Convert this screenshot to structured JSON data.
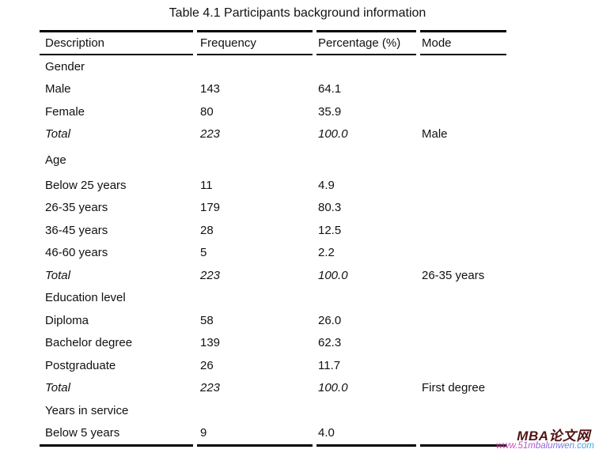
{
  "title": "Table 4.1 Participants background information",
  "table": {
    "columns": [
      "Description",
      "Frequency",
      "Percentage (%)",
      "Mode"
    ],
    "rows": [
      {
        "type": "section",
        "description": "Gender",
        "frequency": "",
        "percentage": "",
        "mode": ""
      },
      {
        "type": "data",
        "description": "Male",
        "frequency": "143",
        "percentage": "64.1",
        "mode": ""
      },
      {
        "type": "data",
        "description": "Female",
        "frequency": "80",
        "percentage": "35.9",
        "mode": ""
      },
      {
        "type": "total",
        "description": "Total",
        "frequency": "223",
        "percentage": "100.0",
        "mode": "Male"
      },
      {
        "type": "section",
        "description": "Age",
        "frequency": "",
        "percentage": "",
        "mode": ""
      },
      {
        "type": "data",
        "description": "Below 25 years",
        "frequency": "11",
        "percentage": "4.9",
        "mode": ""
      },
      {
        "type": "data",
        "description": "26-35 years",
        "frequency": "179",
        "percentage": "80.3",
        "mode": ""
      },
      {
        "type": "data",
        "description": "36-45 years",
        "frequency": "28",
        "percentage": "12.5",
        "mode": ""
      },
      {
        "type": "data",
        "description": "46-60 years",
        "frequency": "5",
        "percentage": "2.2",
        "mode": ""
      },
      {
        "type": "total",
        "description": "Total",
        "frequency": "223",
        "percentage": "100.0",
        "mode": "26-35 years"
      },
      {
        "type": "section",
        "description": "Education level",
        "frequency": "",
        "percentage": "",
        "mode": ""
      },
      {
        "type": "data",
        "description": "Diploma",
        "frequency": "58",
        "percentage": "26.0",
        "mode": ""
      },
      {
        "type": "data",
        "description": "Bachelor degree",
        "frequency": "139",
        "percentage": "62.3",
        "mode": ""
      },
      {
        "type": "data",
        "description": "Postgraduate",
        "frequency": "26",
        "percentage": "11.7",
        "mode": ""
      },
      {
        "type": "total",
        "description": "Total",
        "frequency": "223",
        "percentage": "100.0",
        "mode": "First degree"
      },
      {
        "type": "section",
        "description": "Years in service",
        "frequency": "",
        "percentage": "",
        "mode": ""
      },
      {
        "type": "data",
        "description": "Below 5 years",
        "frequency": "9",
        "percentage": "4.0",
        "mode": ""
      }
    ]
  },
  "watermark": {
    "brand": "MBA论文网",
    "url": "www.51mbalunwen.com",
    "brand_color": "#511414",
    "url_gradient_start": "#e83bb0",
    "url_gradient_end": "#29aee6"
  }
}
